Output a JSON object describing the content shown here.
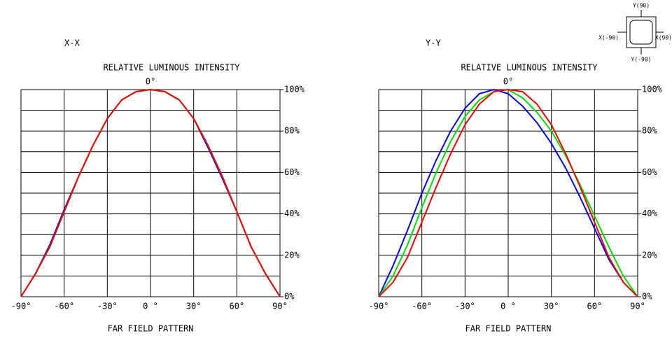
{
  "chart_data": [
    {
      "type": "line",
      "title": "X-X",
      "subtitle": "RELATIVE LUMINOUS INTENSITY",
      "xlabel": "FAR FIELD PATTERN",
      "annotation": "0°",
      "x": [
        -90,
        -80,
        -70,
        -60,
        -50,
        -40,
        -30,
        -20,
        -10,
        0,
        10,
        20,
        30,
        40,
        50,
        60,
        70,
        80,
        90
      ],
      "series": [
        {
          "name": "Blue",
          "color": "#0000ff",
          "values": [
            0,
            11,
            25,
            42,
            58,
            73,
            86,
            95,
            99,
            100,
            99,
            95,
            86,
            72,
            57,
            41,
            24,
            11,
            0
          ]
        },
        {
          "name": "Green",
          "color": "#00e000",
          "values": [
            0,
            11,
            24,
            41,
            58,
            73,
            86,
            95,
            99,
            100,
            99,
            95,
            86,
            73,
            58,
            41,
            24,
            11,
            0
          ]
        },
        {
          "name": "Red",
          "color": "#ff0000",
          "values": [
            0,
            11,
            24,
            41,
            58,
            73,
            86,
            95,
            99,
            100,
            99,
            95,
            86,
            73,
            58,
            41,
            24,
            11,
            0
          ]
        }
      ],
      "xlim": [
        -90,
        90
      ],
      "ylim": [
        0,
        100
      ],
      "xticks": [
        {
          "value": -90,
          "label": "-90°"
        },
        {
          "value": -60,
          "label": "-60°"
        },
        {
          "value": -30,
          "label": "-30°"
        },
        {
          "value": 0,
          "label": "0 °"
        },
        {
          "value": 30,
          "label": "30°"
        },
        {
          "value": 60,
          "label": "60°"
        },
        {
          "value": 90,
          "label": "90°"
        }
      ],
      "yticks": [
        {
          "value": 0,
          "label": "0%"
        },
        {
          "value": 20,
          "label": "20%"
        },
        {
          "value": 40,
          "label": "40%"
        },
        {
          "value": 60,
          "label": "60%"
        },
        {
          "value": 80,
          "label": "80%"
        },
        {
          "value": 100,
          "label": "100%"
        }
      ],
      "minor_yticks": [
        10,
        30,
        50,
        70,
        90
      ],
      "grid": true
    },
    {
      "type": "line",
      "title": "Y-Y",
      "subtitle": "RELATIVE LUMINOUS INTENSITY",
      "xlabel": "FAR FIELD PATTERN",
      "annotation": "0°",
      "x": [
        -90,
        -80,
        -70,
        -60,
        -50,
        -40,
        -30,
        -20,
        -10,
        0,
        10,
        20,
        30,
        40,
        50,
        60,
        70,
        80,
        90
      ],
      "series": [
        {
          "name": "Blue",
          "color": "#0000ff",
          "values": [
            0,
            15,
            32,
            50,
            66,
            80,
            91,
            98,
            100,
            98,
            92,
            84,
            74,
            62,
            48,
            33,
            18,
            7,
            0
          ]
        },
        {
          "name": "Green",
          "color": "#00e000",
          "values": [
            0,
            10,
            25,
            43,
            60,
            75,
            87,
            95,
            99,
            100,
            96,
            89,
            80,
            68,
            54,
            39,
            24,
            10,
            0
          ]
        },
        {
          "name": "Red",
          "color": "#ff0000",
          "values": [
            0,
            7,
            19,
            36,
            53,
            69,
            83,
            93,
            99,
            100,
            99,
            93,
            83,
            69,
            53,
            36,
            19,
            7,
            0
          ]
        }
      ],
      "xlim": [
        -90,
        90
      ],
      "ylim": [
        0,
        100
      ],
      "xticks": [
        {
          "value": -90,
          "label": "-90°"
        },
        {
          "value": -60,
          "label": "-60°"
        },
        {
          "value": -30,
          "label": "-30°"
        },
        {
          "value": 0,
          "label": "0 °"
        },
        {
          "value": 30,
          "label": "30°"
        },
        {
          "value": 60,
          "label": "60°"
        },
        {
          "value": 90,
          "label": "90°"
        }
      ],
      "yticks": [
        {
          "value": 0,
          "label": "0%"
        },
        {
          "value": 20,
          "label": "20%"
        },
        {
          "value": 40,
          "label": "40%"
        },
        {
          "value": 60,
          "label": "60%"
        },
        {
          "value": 80,
          "label": "80%"
        },
        {
          "value": 100,
          "label": "100%"
        }
      ],
      "minor_yticks": [
        10,
        30,
        50,
        70,
        90
      ],
      "grid": true
    }
  ],
  "orientation_icon": {
    "labels": [
      "Y(90)",
      "X(-90)",
      "X(90)",
      "Y(-90)"
    ]
  }
}
